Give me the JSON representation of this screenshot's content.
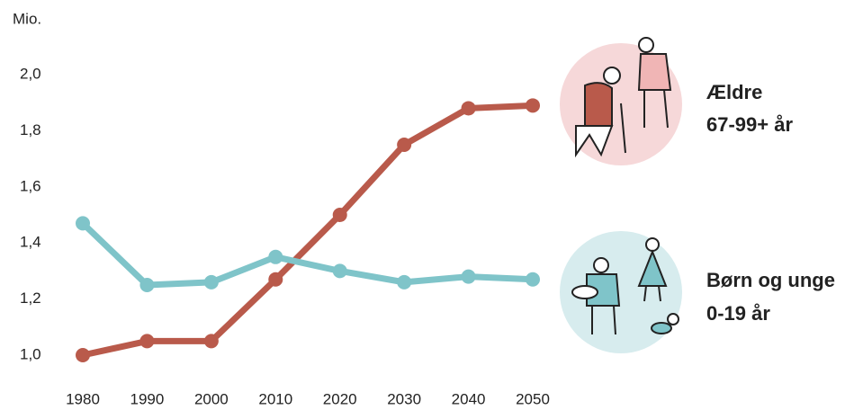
{
  "chart_data": {
    "type": "line",
    "y_unit": "Mio.",
    "x": [
      1980,
      1990,
      2000,
      2010,
      2020,
      2030,
      2040,
      2050
    ],
    "xlim": [
      1980,
      2050
    ],
    "xticks": [
      1980,
      1990,
      2000,
      2010,
      2020,
      2030,
      2040,
      2050
    ],
    "ylim": [
      0.9,
      2.1
    ],
    "yticks": [
      {
        "value": 1.0,
        "label": "1,0"
      },
      {
        "value": 1.2,
        "label": "1,2"
      },
      {
        "value": 1.4,
        "label": "1,4"
      },
      {
        "value": 1.6,
        "label": "1,6"
      },
      {
        "value": 1.8,
        "label": "1,8"
      },
      {
        "value": 2.0,
        "label": "2,0"
      }
    ],
    "series": [
      {
        "name": "Ældre",
        "age": "67-99+ år",
        "color": "#b95a4b",
        "values": [
          1.0,
          1.05,
          1.05,
          1.27,
          1.5,
          1.75,
          1.88,
          1.89
        ]
      },
      {
        "name": "Børn og unge",
        "age": "0-19 år",
        "color": "#7fc4c9",
        "values": [
          1.47,
          1.25,
          1.26,
          1.35,
          1.3,
          1.26,
          1.28,
          1.27
        ]
      }
    ]
  }
}
